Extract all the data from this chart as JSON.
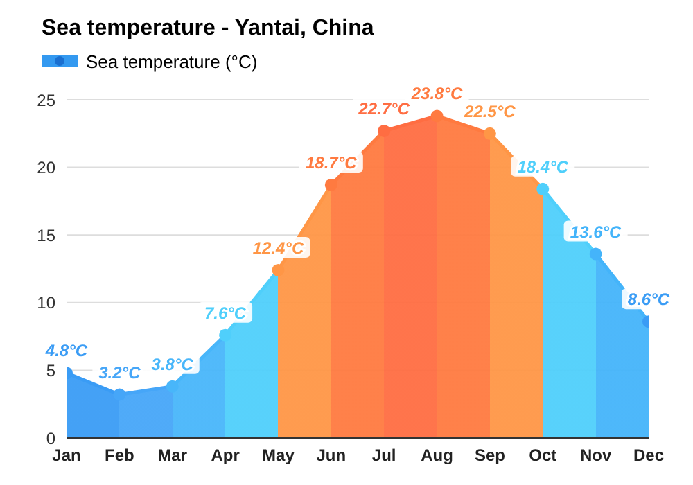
{
  "chart_data": {
    "type": "area",
    "title": "Sea temperature - Yantai, China",
    "categories": [
      "Jan",
      "Feb",
      "Mar",
      "Apr",
      "May",
      "Jun",
      "Jul",
      "Aug",
      "Sep",
      "Oct",
      "Nov",
      "Dec"
    ],
    "series": [
      {
        "name": "Sea temperature (°C)",
        "color": "#3399f0",
        "colors": [
          "#3a9cf5",
          "#46a6f8",
          "#48b6fa",
          "#4fcffb",
          "#ff9646",
          "#ff7a40",
          "#ff6d42",
          "#ff7a40",
          "#ff9646",
          "#4fcffb",
          "#44b4fa",
          "#3a9cf5"
        ],
        "values": [
          4.8,
          3.2,
          3.8,
          7.6,
          12.4,
          18.7,
          22.7,
          23.8,
          22.5,
          18.4,
          13.6,
          8.6
        ],
        "value_labels": [
          "4.8°C",
          "3.2°C",
          "3.8°C",
          "7.6°C",
          "12.4°C",
          "18.7°C",
          "22.7°C",
          "23.8°C",
          "22.5°C",
          "18.4°C",
          "13.6°C",
          "8.6°C"
        ]
      }
    ],
    "ylim": [
      0,
      25
    ],
    "yticks": [
      0,
      5,
      10,
      15,
      20,
      25
    ],
    "grid": "y",
    "legend": "top left",
    "marker": "circle"
  }
}
